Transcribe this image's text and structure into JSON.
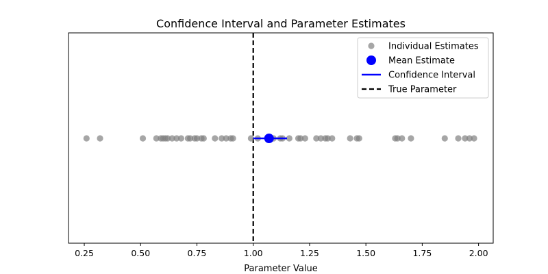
{
  "chart_data": {
    "type": "scatter",
    "title": "Confidence Interval and Parameter Estimates",
    "xlabel": "Parameter Value",
    "ylabel": "",
    "xlim": [
      0.18,
      2.065
    ],
    "xticks": [
      "0.25",
      "0.50",
      "0.75",
      "1.00",
      "1.25",
      "1.50",
      "1.75",
      "2.00"
    ],
    "grid": false,
    "legend_placement": "top-right",
    "individual_estimates": [
      0.26,
      0.32,
      0.51,
      0.57,
      0.59,
      0.6,
      0.61,
      0.62,
      0.64,
      0.66,
      0.68,
      0.71,
      0.72,
      0.74,
      0.75,
      0.77,
      0.78,
      0.83,
      0.86,
      0.88,
      0.9,
      0.91,
      0.99,
      1.02,
      1.07,
      1.09,
      1.12,
      1.13,
      1.16,
      1.2,
      1.21,
      1.23,
      1.28,
      1.3,
      1.32,
      1.33,
      1.35,
      1.43,
      1.46,
      1.47,
      1.63,
      1.64,
      1.66,
      1.7,
      1.85,
      1.91,
      1.94,
      1.96,
      1.98
    ],
    "mean_estimate": 1.07,
    "confidence_interval": [
      1.0,
      1.15
    ],
    "true_parameter": 1.0,
    "legend": [
      {
        "label": "Individual Estimates",
        "kind": "point-gray"
      },
      {
        "label": "Mean Estimate",
        "kind": "point-blue"
      },
      {
        "label": "Confidence Interval",
        "kind": "line-blue"
      },
      {
        "label": "True Parameter",
        "kind": "line-dashed"
      }
    ],
    "colors": {
      "individual": "#808080",
      "mean": "#0000ff",
      "ci": "#0000ff",
      "true": "#000000"
    }
  }
}
